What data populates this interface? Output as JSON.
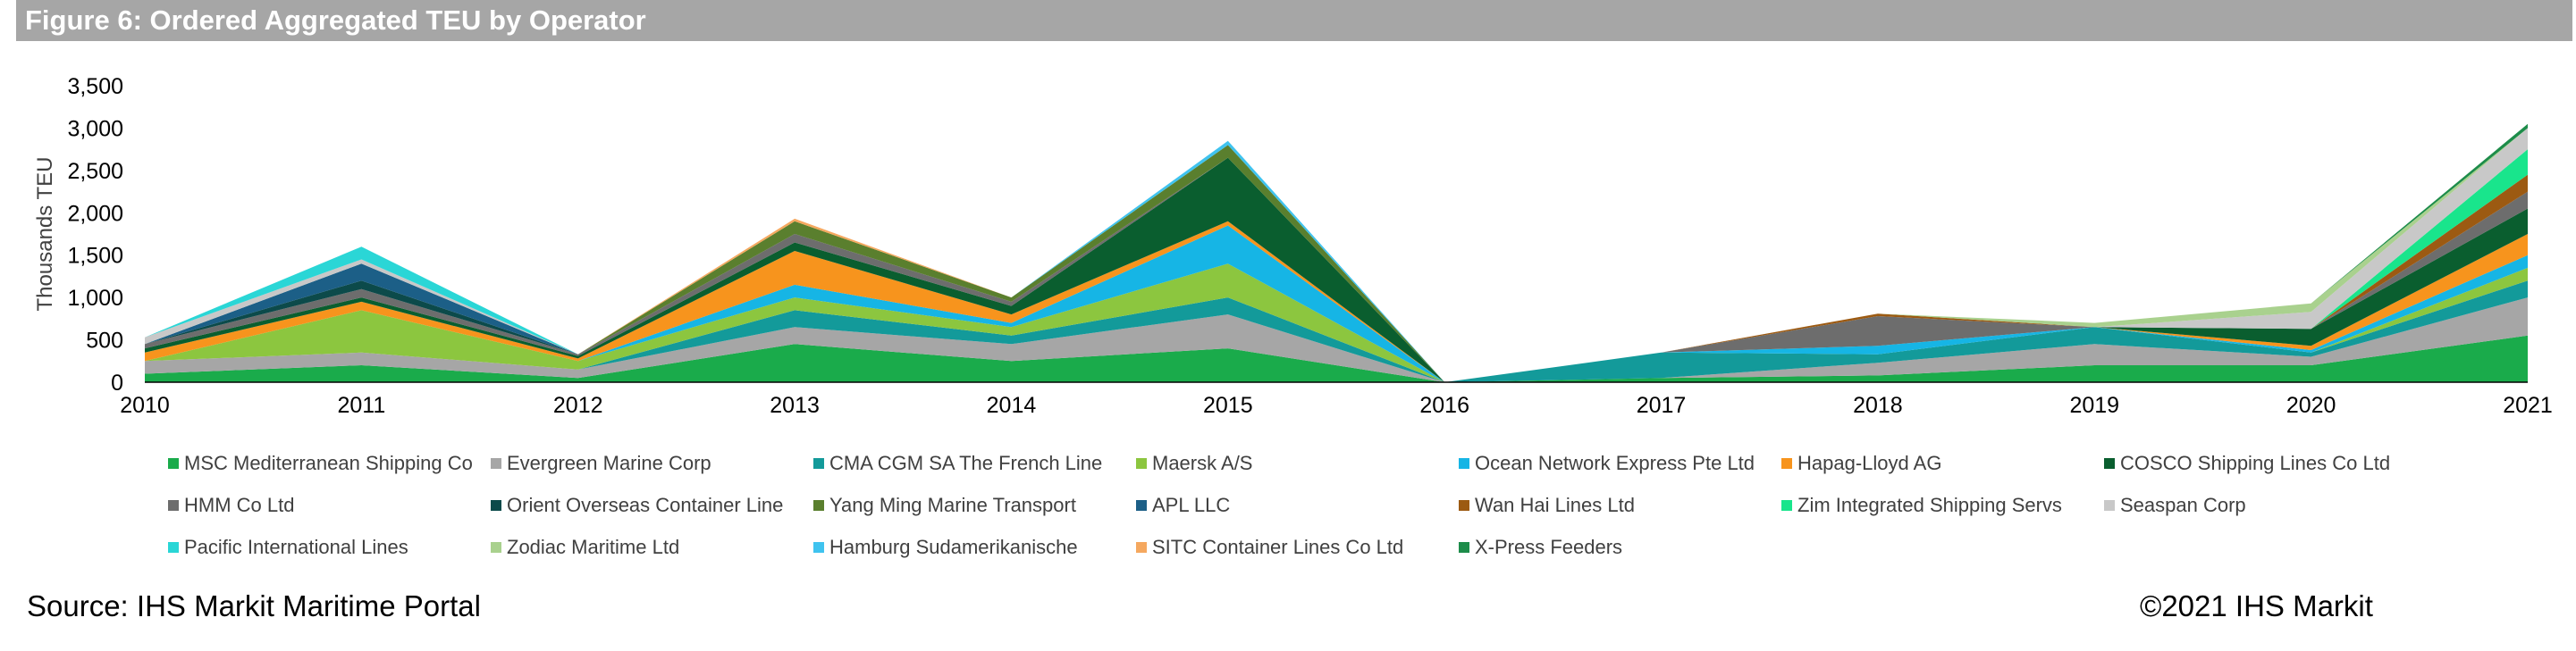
{
  "title": "Figure 6: Ordered Aggregated TEU by Operator",
  "footer": {
    "source": "Source: IHS Markit Maritime Portal",
    "copyright": "©2021 IHS Markit"
  },
  "chart_data": {
    "type": "area",
    "stacked": true,
    "title": "Figure 6: Ordered Aggregated TEU by Operator",
    "xlabel": "",
    "ylabel": "Thousands  TEU",
    "x": [
      "2010",
      "2011",
      "2012",
      "2013",
      "2014",
      "2015",
      "2016",
      "2017",
      "2018",
      "2019",
      "2020",
      "2021"
    ],
    "ylim": [
      0,
      3500
    ],
    "yticks": [
      0,
      500,
      1000,
      1500,
      2000,
      2500,
      3000,
      3500
    ],
    "ytick_labels": [
      "0",
      "500",
      "1,000",
      "1,500",
      "2,000",
      "2,500",
      "3,000",
      "3,500"
    ],
    "legend_position": "bottom",
    "series": [
      {
        "name": "MSC Mediterranean Shipping Co",
        "color": "#1aab4b",
        "values": [
          100,
          200,
          50,
          450,
          250,
          400,
          0,
          50,
          80,
          200,
          200,
          550
        ]
      },
      {
        "name": "Evergreen Marine Corp",
        "color": "#a6a6a6",
        "values": [
          150,
          150,
          100,
          200,
          200,
          400,
          0,
          0,
          150,
          250,
          100,
          450
        ]
      },
      {
        "name": "CMA CGM SA The French Line",
        "color": "#139a9a",
        "values": [
          0,
          0,
          0,
          200,
          100,
          200,
          0,
          300,
          100,
          200,
          50,
          200
        ]
      },
      {
        "name": "Maersk A/S",
        "color": "#8cc63f",
        "values": [
          0,
          500,
          100,
          150,
          100,
          400,
          0,
          0,
          0,
          0,
          0,
          150
        ]
      },
      {
        "name": "Ocean Network Express Pte Ltd",
        "color": "#16b5e5",
        "values": [
          0,
          0,
          0,
          150,
          50,
          450,
          0,
          0,
          100,
          0,
          30,
          150
        ]
      },
      {
        "name": "Hapag-Lloyd AG",
        "color": "#f7941d",
        "values": [
          100,
          100,
          30,
          400,
          100,
          50,
          0,
          0,
          0,
          0,
          50,
          250
        ]
      },
      {
        "name": "COSCO Shipping Lines Co Ltd",
        "color": "#0a5e2f",
        "values": [
          50,
          50,
          30,
          100,
          100,
          750,
          0,
          0,
          0,
          0,
          200,
          300
        ]
      },
      {
        "name": "HMM Co Ltd",
        "color": "#6d6d6d",
        "values": [
          50,
          100,
          20,
          100,
          50,
          0,
          0,
          0,
          350,
          0,
          0,
          200
        ]
      },
      {
        "name": "Orient Overseas Container Line",
        "color": "#0c4a4a",
        "values": [
          0,
          100,
          0,
          0,
          0,
          0,
          0,
          0,
          0,
          0,
          0,
          0
        ]
      },
      {
        "name": "Yang Ming Marine Transport",
        "color": "#5a7f2e",
        "values": [
          0,
          0,
          0,
          150,
          50,
          150,
          0,
          0,
          0,
          0,
          0,
          0
        ]
      },
      {
        "name": "APL LLC",
        "color": "#1c5f87",
        "values": [
          0,
          200,
          0,
          0,
          0,
          0,
          0,
          0,
          0,
          0,
          0,
          0
        ]
      },
      {
        "name": "Wan Hai Lines Ltd",
        "color": "#9c5a12",
        "values": [
          0,
          0,
          0,
          0,
          0,
          0,
          0,
          0,
          30,
          0,
          0,
          200
        ]
      },
      {
        "name": "Zim Integrated Shipping Servs",
        "color": "#19e58c",
        "values": [
          0,
          0,
          0,
          0,
          0,
          0,
          0,
          0,
          0,
          0,
          0,
          300
        ]
      },
      {
        "name": "Seaspan Corp",
        "color": "#c8c8c8",
        "values": [
          80,
          50,
          0,
          0,
          0,
          0,
          0,
          0,
          0,
          0,
          200,
          250
        ]
      },
      {
        "name": "Pacific International Lines",
        "color": "#2ad6d6",
        "values": [
          0,
          150,
          0,
          0,
          0,
          0,
          0,
          0,
          0,
          0,
          0,
          0
        ]
      },
      {
        "name": "Zodiac Maritime Ltd",
        "color": "#a9d18e",
        "values": [
          0,
          0,
          0,
          0,
          0,
          0,
          0,
          0,
          0,
          50,
          100,
          0
        ]
      },
      {
        "name": "Hamburg Sudamerikanische",
        "color": "#3fc3ef",
        "values": [
          0,
          0,
          0,
          0,
          0,
          50,
          0,
          0,
          0,
          0,
          0,
          0
        ]
      },
      {
        "name": "SITC Container Lines Co Ltd",
        "color": "#f5a85f",
        "values": [
          0,
          0,
          0,
          30,
          0,
          0,
          0,
          0,
          0,
          0,
          0,
          0
        ]
      },
      {
        "name": "X-Press Feeders",
        "color": "#1d8c4a",
        "values": [
          0,
          0,
          0,
          0,
          0,
          0,
          0,
          0,
          0,
          0,
          0,
          50
        ]
      }
    ]
  }
}
